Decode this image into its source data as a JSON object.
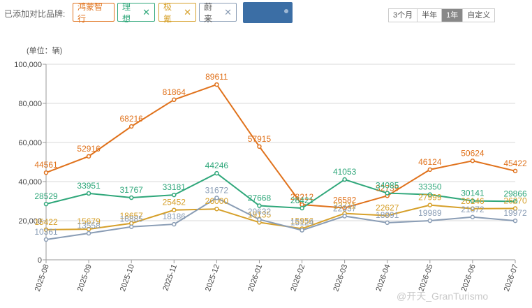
{
  "filter": {
    "label": "已添加对比品牌:",
    "brands": [
      {
        "name": "鸿蒙智行",
        "color": "#e0721c",
        "removable": false
      },
      {
        "name": "理想",
        "color": "#2fa77a",
        "removable": true,
        "close": "✕"
      },
      {
        "name": "极氪",
        "color": "#d6a02a",
        "removable": true,
        "close": "✕"
      },
      {
        "name": "蔚来",
        "color": "#8a9db5",
        "removable": true,
        "close": "✕"
      }
    ]
  },
  "range_buttons": [
    "3个月",
    "半年",
    "1年",
    "自定义"
  ],
  "range_selected": "1年",
  "watermark": "@开天_GranTurismo",
  "chart_data": {
    "type": "line",
    "ylabel": "(单位：辆)",
    "ylim": [
      0,
      100000
    ],
    "yticks": [
      "0",
      "20,000",
      "40,000",
      "60,000",
      "80,000",
      "100,000"
    ],
    "categories": [
      "2025-08",
      "2025-09",
      "2025-10",
      "2025-11",
      "2025-12",
      "2026-01",
      "2026-02",
      "2026-03",
      "2026-04",
      "2026-05",
      "2026-06",
      "2026-07"
    ],
    "grid": true,
    "series": [
      {
        "name": "鸿蒙智行",
        "color": "#e0721c",
        "values": [
          44561,
          52916,
          68216,
          81864,
          89611,
          57915,
          28212,
          26582,
          32739,
          46124,
          50624,
          45422
        ]
      },
      {
        "name": "理想",
        "color": "#2fa77a",
        "values": [
          28529,
          33951,
          31767,
          33181,
          44246,
          27668,
          26421,
          41053,
          34085,
          33350,
          30141,
          29866
        ]
      },
      {
        "name": "极氪",
        "color": "#d6a02a",
        "values": [
          15422,
          15679,
          18657,
          25452,
          26000,
          19135,
          15956,
          23711,
          22627,
          27999,
          26146,
          26270
        ]
      },
      {
        "name": "蔚来",
        "color": "#8a9db5",
        "values": [
          10361,
          13558,
          16885,
          18186,
          31672,
          20632,
          15124,
          22337,
          18991,
          19989,
          21872,
          19972
        ]
      }
    ]
  }
}
